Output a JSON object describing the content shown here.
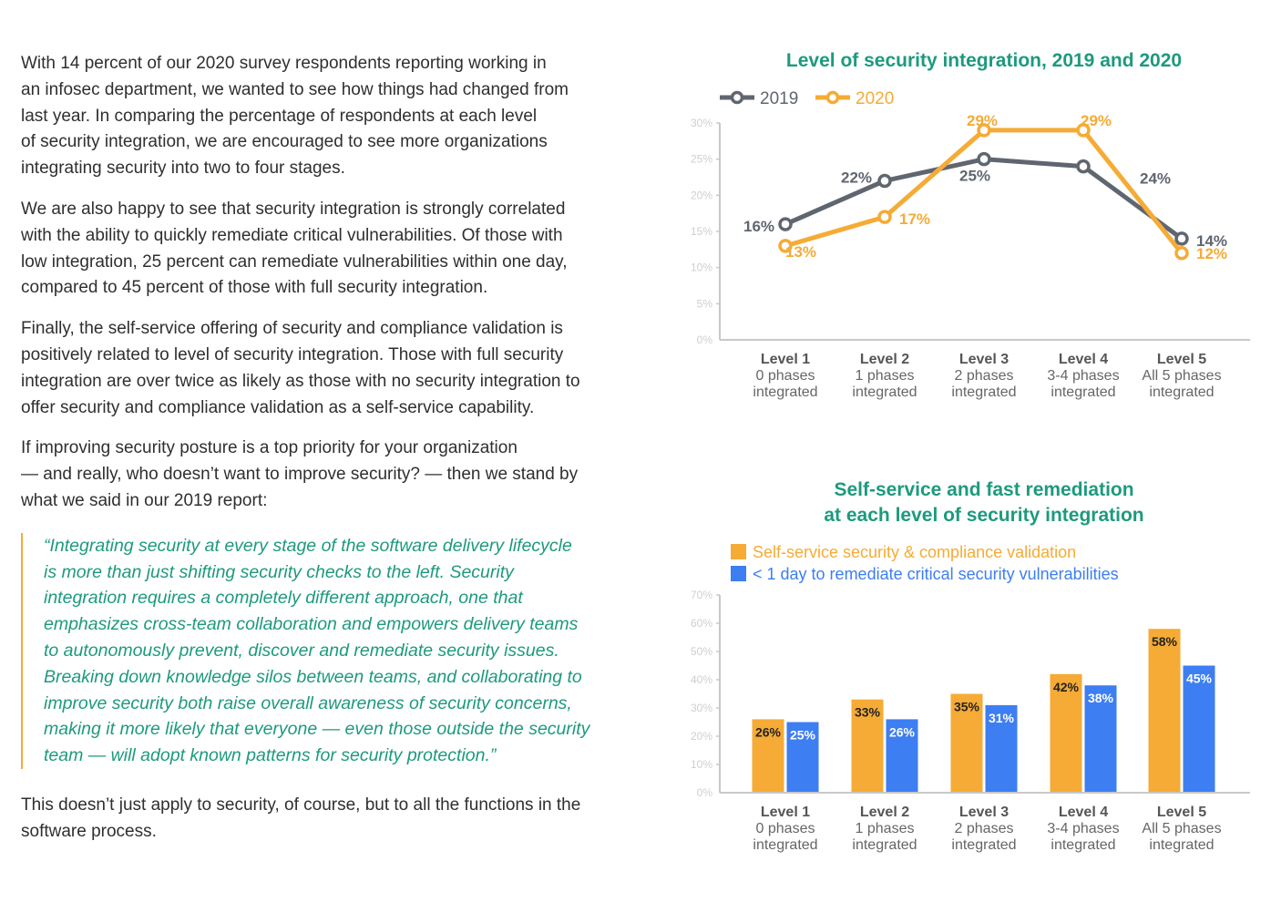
{
  "left_text": {
    "paragraphs": [
      [
        "With 14 percent of our 2020 survey respondents reporting working in",
        "an infosec department, we wanted to see how things had changed from",
        "last year. In comparing the percentage of respondents at each level",
        "of security integration, we are encouraged to see more organizations",
        "integrating security into two to four stages."
      ],
      [
        "We are also happy to see that security integration is strongly correlated",
        "with the ability to quickly remediate critical vulnerabilities. Of those with",
        "low integration, 25 percent can remediate vulnerabilities within one day,",
        "compared to 45 percent of those with full security integration."
      ],
      [
        "Finally, the self-service offering of security and compliance validation is",
        "positively related to level of security integration. Those with full security",
        "integration are over twice as likely as those with no security integration to",
        "offer security and compliance validation as a self-service capability."
      ],
      [
        "If improving security posture is a top priority for your organization",
        "— and really, who doesn’t want to improve security? — then we stand by",
        "what we said in our 2019 report:"
      ]
    ],
    "quote": [
      "“Integrating security at every stage of the software delivery lifecycle",
      "is more than just shifting security checks to the left. Security",
      "integration requires a completely different approach, one that",
      "emphasizes cross-team collaboration and empowers delivery teams",
      "to autonomously prevent, discover and remediate security issues.",
      "Breaking down knowledge silos between teams, and collaborating to",
      "improve security both raise overall awareness of security concerns,",
      "making it more likely that everyone — even those outside the security",
      "team — will adopt known patterns for security protection.”"
    ],
    "closing": [
      "This doesn’t just apply to security, of course, but to all the functions in the",
      "software process."
    ]
  },
  "colors": {
    "c2019": "#5f6670",
    "c2020": "#f5ab35",
    "blue": "#3d7ef2",
    "teal": "#1d9a7e",
    "axis": "#c8c8c8",
    "ticks": "#cfcfcf"
  },
  "chart_data": [
    {
      "type": "line",
      "title": [
        "Level of security integration, 2019 and 2020"
      ],
      "categories": [
        [
          "Level 1",
          "0 phases",
          "integrated"
        ],
        [
          "Level 2",
          "1 phases",
          "integrated"
        ],
        [
          "Level 3",
          "2 phases",
          "integrated"
        ],
        [
          "Level 4",
          "3-4 phases",
          "integrated"
        ],
        [
          "Level 5",
          "All 5 phases",
          "integrated"
        ]
      ],
      "series": [
        {
          "name": "2019",
          "values": [
            16,
            22,
            25,
            24,
            14
          ],
          "labels": [
            "16%",
            "22%",
            "25%",
            "24%",
            "14%"
          ]
        },
        {
          "name": "2020",
          "values": [
            13,
            17,
            29,
            29,
            12
          ],
          "labels": [
            "13%",
            "17%",
            "29%",
            "29%",
            "12%"
          ]
        }
      ],
      "ylim": [
        0,
        30
      ],
      "yticks": [
        "0%",
        "5%",
        "10%",
        "15%",
        "20%",
        "25%",
        "30%"
      ],
      "legend": "top-left",
      "grid": false
    },
    {
      "type": "bar",
      "title": [
        "Self-service and fast remediation",
        "at each level of security integration"
      ],
      "categories": [
        [
          "Level 1",
          "0 phases",
          "integrated"
        ],
        [
          "Level 2",
          "1 phases",
          "integrated"
        ],
        [
          "Level 3",
          "2 phases",
          "integrated"
        ],
        [
          "Level 4",
          "3-4 phases",
          "integrated"
        ],
        [
          "Level 5",
          "All 5 phases",
          "integrated"
        ]
      ],
      "series": [
        {
          "name": "Self-service security & compliance validation",
          "values": [
            26,
            33,
            35,
            42,
            58
          ],
          "labels": [
            "26%",
            "33%",
            "35%",
            "42%",
            "58%"
          ]
        },
        {
          "name": "< 1 day to remediate critical security vulnerabilities",
          "values": [
            25,
            26,
            31,
            38,
            45
          ],
          "labels": [
            "25%",
            "26%",
            "31%",
            "38%",
            "45%"
          ]
        }
      ],
      "ylim": [
        0,
        70
      ],
      "yticks": [
        "0%",
        "10%",
        "20%",
        "30%",
        "40%",
        "50%",
        "60%",
        "70%"
      ],
      "legend": "top-left",
      "grid": false
    }
  ]
}
